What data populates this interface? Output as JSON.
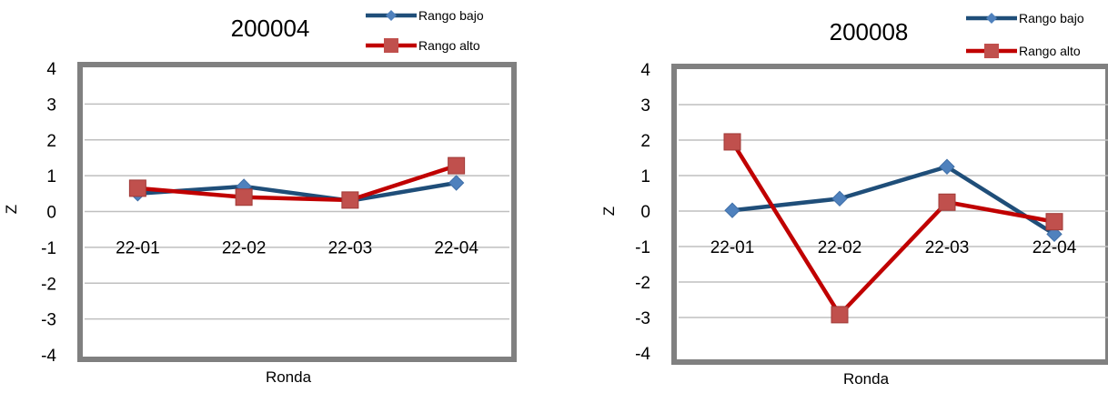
{
  "chart_data": [
    {
      "type": "line",
      "title": "200004",
      "xlabel": "Ronda",
      "ylabel": "Z",
      "categories": [
        "22-01",
        "22-02",
        "22-03",
        "22-04"
      ],
      "ylim": [
        -4,
        4
      ],
      "yticks": [
        "4",
        "3",
        "2",
        "1",
        "0",
        "-1",
        "-2",
        "-3",
        "-4"
      ],
      "grid": true,
      "legend": "top-right",
      "series": [
        {
          "name": "Rango bajo",
          "color": "#1f4e79",
          "marker": "diamond",
          "marker_color": "#4f81bd",
          "values": [
            0.5,
            0.7,
            0.3,
            0.8
          ]
        },
        {
          "name": "Rango alto",
          "color": "#c00000",
          "marker": "square",
          "marker_color": "#c0504d",
          "values": [
            0.65,
            0.4,
            0.32,
            1.28
          ]
        }
      ]
    },
    {
      "type": "line",
      "title": "200008",
      "xlabel": "Ronda",
      "ylabel": "Z",
      "categories": [
        "22-01",
        "22-02",
        "22-03",
        "22-04"
      ],
      "ylim": [
        -4,
        4
      ],
      "yticks": [
        "4",
        "3",
        "2",
        "1",
        "0",
        "-1",
        "-2",
        "-3",
        "-4"
      ],
      "grid": true,
      "legend": "top-right",
      "series": [
        {
          "name": "Rango bajo",
          "color": "#1f4e79",
          "marker": "diamond",
          "marker_color": "#4f81bd",
          "values": [
            0.02,
            0.35,
            1.25,
            -0.65
          ]
        },
        {
          "name": "Rango alto",
          "color": "#c00000",
          "marker": "square",
          "marker_color": "#c0504d",
          "values": [
            1.95,
            -2.92,
            0.25,
            -0.3
          ]
        }
      ]
    }
  ]
}
